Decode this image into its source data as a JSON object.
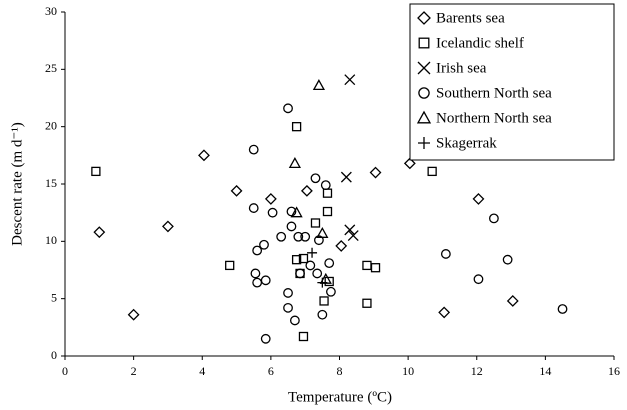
{
  "chart_data": {
    "type": "scatter",
    "xlabel": "Temperature (ºC)",
    "ylabel": "Descent rate (m d⁻¹)",
    "xlim": [
      0,
      16
    ],
    "ylim": [
      0,
      30
    ],
    "xticks": [
      0,
      2,
      4,
      6,
      8,
      10,
      12,
      14,
      16
    ],
    "yticks": [
      0,
      5,
      10,
      15,
      20,
      25,
      30
    ],
    "legend": "upper right",
    "series": [
      {
        "name": "Barents sea",
        "marker": "diamond",
        "color": "#000000",
        "x": [
          1.0,
          3.0,
          2.0,
          4.05,
          5.0,
          6.0,
          7.05,
          9.05,
          10.05,
          11.05,
          12.05,
          13.05,
          8.05
        ],
        "values": [
          10.8,
          11.3,
          3.6,
          17.5,
          14.4,
          13.7,
          14.4,
          16.0,
          16.8,
          3.8,
          13.7,
          4.8,
          9.6
        ]
      },
      {
        "name": "Icelandic shelf",
        "marker": "square",
        "color": "#000000",
        "x": [
          0.9,
          4.8,
          6.75,
          7.65,
          7.65,
          7.3,
          6.75,
          6.85,
          7.7,
          6.95,
          7.55,
          8.8,
          8.8,
          9.05,
          10.7,
          6.95
        ],
        "values": [
          16.1,
          7.9,
          20.0,
          12.6,
          14.2,
          11.6,
          8.4,
          7.2,
          6.5,
          1.7,
          4.8,
          4.6,
          7.9,
          7.7,
          16.1,
          8.5
        ]
      },
      {
        "name": "Irish sea",
        "marker": "cross",
        "color": "#000000",
        "x": [
          8.3,
          8.2,
          8.3,
          8.4
        ],
        "values": [
          24.1,
          15.6,
          11.0,
          10.5
        ]
      },
      {
        "name": "Southern North sea",
        "marker": "circle",
        "color": "#000000",
        "x": [
          5.5,
          6.5,
          5.5,
          6.05,
          6.6,
          7.3,
          7.6,
          5.8,
          5.6,
          6.3,
          6.6,
          6.8,
          7.0,
          7.4,
          7.15,
          7.35,
          7.7,
          5.55,
          5.6,
          5.85,
          6.85,
          6.5,
          6.5,
          6.7,
          5.85,
          7.5,
          7.75,
          11.1,
          12.05,
          12.5,
          12.9,
          14.5
        ],
        "values": [
          18.0,
          21.6,
          12.9,
          12.5,
          12.6,
          15.5,
          14.9,
          9.7,
          9.2,
          10.4,
          11.3,
          10.4,
          10.4,
          10.1,
          7.9,
          7.2,
          8.1,
          7.2,
          6.4,
          6.6,
          7.2,
          5.5,
          4.2,
          3.1,
          1.5,
          3.6,
          5.6,
          8.9,
          6.7,
          12.0,
          8.4,
          4.1
        ]
      },
      {
        "name": "Northern North sea",
        "marker": "triangle",
        "color": "#000000",
        "x": [
          7.4,
          6.7,
          6.75,
          7.5,
          7.6
        ],
        "values": [
          23.6,
          16.8,
          12.5,
          10.7,
          6.7
        ]
      },
      {
        "name": "Skagerrak",
        "marker": "plus",
        "color": "#000000",
        "x": [
          7.2,
          7.5
        ],
        "values": [
          9.0,
          6.4
        ]
      }
    ]
  }
}
